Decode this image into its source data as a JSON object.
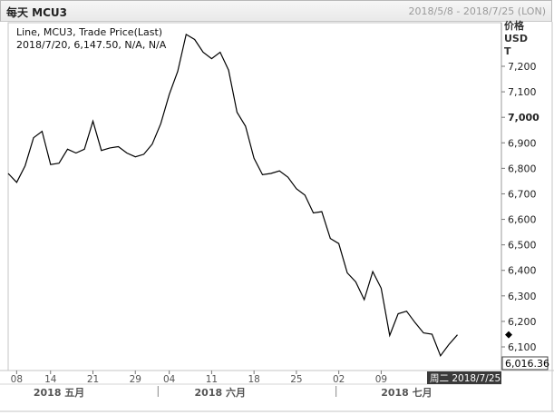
{
  "header": {
    "title": "每天 MCU3",
    "date_range": "2018/5/8 - 2018/7/25 (LON)"
  },
  "legend": {
    "line1": "Line, MCU3, Trade Price(Last)",
    "line2": "2018/7/20, 6,147.50, N/A, N/A"
  },
  "axis": {
    "unit_lines": [
      "价格",
      "USD",
      "T"
    ],
    "current_value_label": "6,016.36",
    "cursor_date_label": "周二 2018/7/25"
  },
  "chart_data": {
    "type": "line",
    "title": "MCU3",
    "xlabel": "",
    "ylabel": "价格 USD T",
    "ylim": [
      6016.36,
      7330
    ],
    "y_ticks": [
      6100,
      6200,
      6300,
      6400,
      6500,
      6600,
      6700,
      6800,
      6900,
      7000,
      7100,
      7200
    ],
    "y_tick_labels": [
      "6,100",
      "6,200",
      "6,300",
      "6,400",
      "6,500",
      "6,600",
      "6,700",
      "6,800",
      "6,900",
      "7,000",
      "7,100",
      "7,200"
    ],
    "x_day_ticks": [
      {
        "date": "2018-05-08",
        "label": "08"
      },
      {
        "date": "2018-05-14",
        "label": "14"
      },
      {
        "date": "2018-05-21",
        "label": "21"
      },
      {
        "date": "2018-05-29",
        "label": "29"
      },
      {
        "date": "2018-06-04",
        "label": "04"
      },
      {
        "date": "2018-06-11",
        "label": "11"
      },
      {
        "date": "2018-06-18",
        "label": "18"
      },
      {
        "date": "2018-06-25",
        "label": "25"
      },
      {
        "date": "2018-07-02",
        "label": "02"
      },
      {
        "date": "2018-07-09",
        "label": "09"
      }
    ],
    "x_month_labels": [
      {
        "date": "2018-05-15",
        "label": "2018 五月"
      },
      {
        "date": "2018-06-12",
        "label": "2018 六月"
      },
      {
        "date": "2018-07-12",
        "label": "2018 七月"
      }
    ],
    "month_separators": [
      "2018-06-01",
      "2018-07-01"
    ],
    "series": [
      {
        "name": "MCU3",
        "color": "#000000",
        "points": [
          [
            "2018-05-07",
            6780
          ],
          [
            "2018-05-08",
            6745
          ],
          [
            "2018-05-09",
            6810
          ],
          [
            "2018-05-10",
            6920
          ],
          [
            "2018-05-11",
            6945
          ],
          [
            "2018-05-14",
            6815
          ],
          [
            "2018-05-15",
            6820
          ],
          [
            "2018-05-16",
            6875
          ],
          [
            "2018-05-17",
            6860
          ],
          [
            "2018-05-18",
            6875
          ],
          [
            "2018-05-21",
            6985
          ],
          [
            "2018-05-22",
            6870
          ],
          [
            "2018-05-23",
            6880
          ],
          [
            "2018-05-24",
            6885
          ],
          [
            "2018-05-25",
            6860
          ],
          [
            "2018-05-29",
            6845
          ],
          [
            "2018-05-30",
            6855
          ],
          [
            "2018-05-31",
            6895
          ],
          [
            "2018-06-01",
            6975
          ],
          [
            "2018-06-04",
            7090
          ],
          [
            "2018-06-05",
            7180
          ],
          [
            "2018-06-06",
            7325
          ],
          [
            "2018-06-07",
            7305
          ],
          [
            "2018-06-08",
            7255
          ],
          [
            "2018-06-11",
            7230
          ],
          [
            "2018-06-12",
            7255
          ],
          [
            "2018-06-13",
            7185
          ],
          [
            "2018-06-14",
            7020
          ],
          [
            "2018-06-15",
            6965
          ],
          [
            "2018-06-18",
            6840
          ],
          [
            "2018-06-19",
            6775
          ],
          [
            "2018-06-20",
            6780
          ],
          [
            "2018-06-21",
            6790
          ],
          [
            "2018-06-22",
            6765
          ],
          [
            "2018-06-25",
            6720
          ],
          [
            "2018-06-26",
            6695
          ],
          [
            "2018-06-27",
            6625
          ],
          [
            "2018-06-28",
            6630
          ],
          [
            "2018-06-29",
            6525
          ],
          [
            "2018-07-02",
            6505
          ],
          [
            "2018-07-03",
            6390
          ],
          [
            "2018-07-04",
            6355
          ],
          [
            "2018-07-05",
            6285
          ],
          [
            "2018-07-06",
            6395
          ],
          [
            "2018-07-09",
            6330
          ],
          [
            "2018-07-10",
            6145
          ],
          [
            "2018-07-11",
            6230
          ],
          [
            "2018-07-12",
            6240
          ],
          [
            "2018-07-13",
            6195
          ],
          [
            "2018-07-16",
            6155
          ],
          [
            "2018-07-17",
            6150
          ],
          [
            "2018-07-18",
            6065
          ],
          [
            "2018-07-19",
            6110
          ],
          [
            "2018-07-20",
            6147.5
          ]
        ]
      }
    ],
    "grid": false,
    "legend_position": "top-left"
  }
}
